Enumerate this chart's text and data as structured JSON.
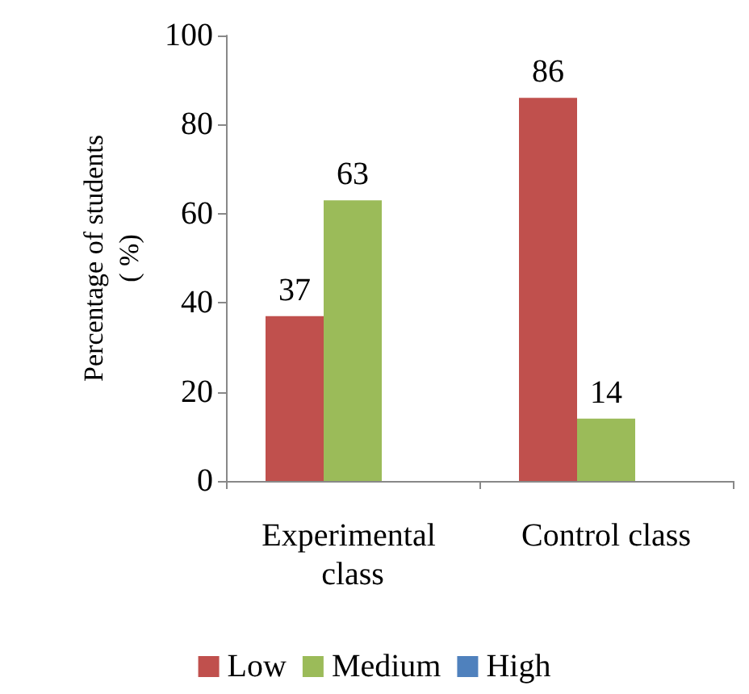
{
  "chart_data": {
    "type": "bar",
    "ylabel": "Percentage of students\n( %)",
    "categories": [
      "Experimental class",
      "Control class"
    ],
    "series": [
      {
        "name": "Low",
        "color": "#c0504d",
        "values": [
          37,
          86
        ]
      },
      {
        "name": "Medium",
        "color": "#9bbb59",
        "values": [
          63,
          14
        ]
      },
      {
        "name": "High",
        "color": "#4f81bd",
        "values": [
          null,
          null
        ]
      }
    ],
    "ylim": [
      0,
      100
    ],
    "yticks": [
      0,
      20,
      40,
      60,
      80,
      100
    ],
    "grid": false,
    "legend": "bottom",
    "data_labels": true
  }
}
